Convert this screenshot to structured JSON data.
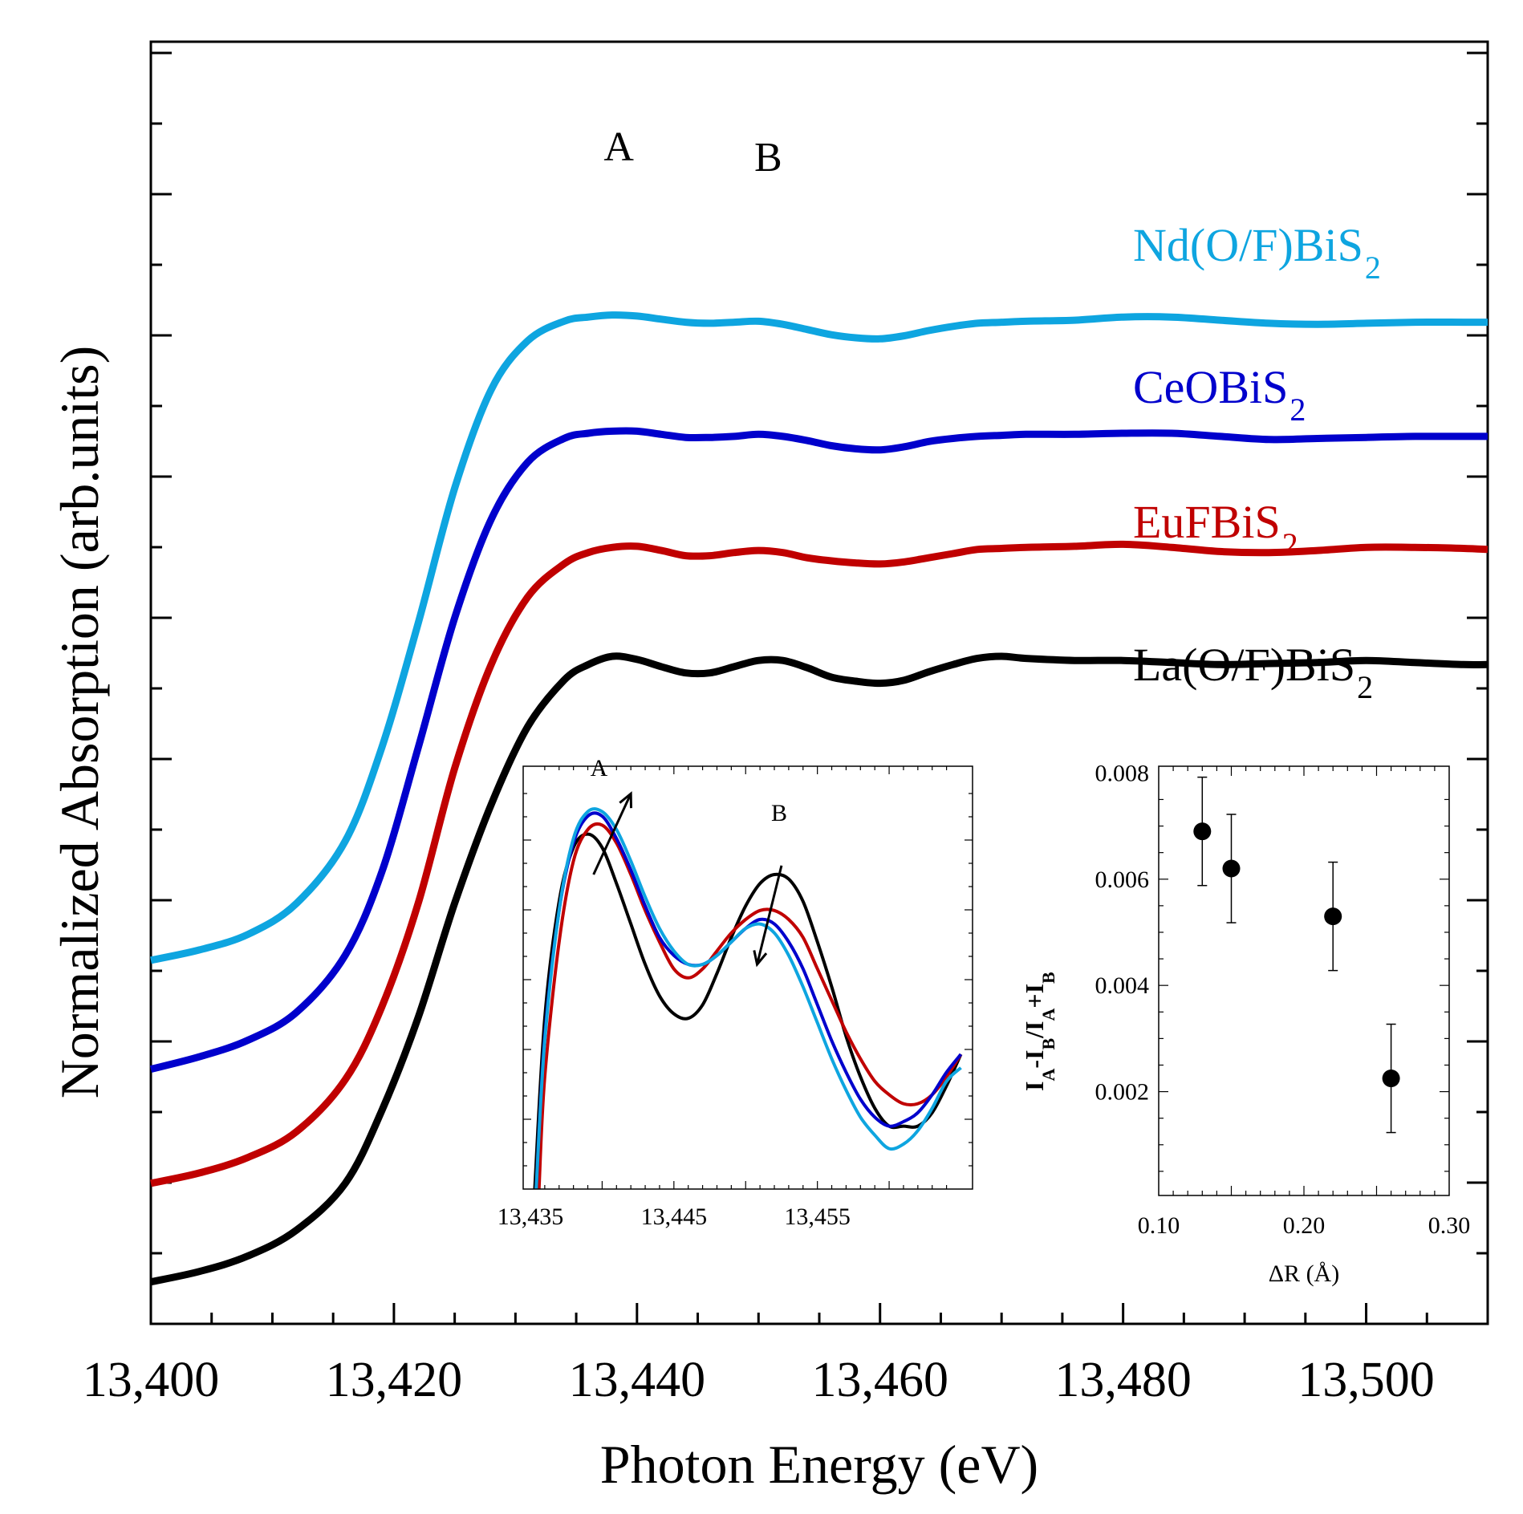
{
  "chart_data": [
    {
      "type": "line",
      "title": "",
      "xlabel": "Photon Energy (eV)",
      "ylabel": "Normalized Absorption (arb.units)",
      "xlim": [
        13400,
        13510
      ],
      "ylim": [
        0,
        9.5
      ],
      "x_ticks": [
        "13,400",
        "13,420",
        "13,440",
        "13,460",
        "13,480",
        "13,500"
      ],
      "x_tick_values": [
        13400,
        13420,
        13440,
        13460,
        13480,
        13500
      ],
      "peak_labels": [
        {
          "text": "A",
          "x": 13438.5
        },
        {
          "text": "B",
          "x": 13450.8
        }
      ],
      "series": [
        {
          "name": "La(O/F)BiS2",
          "label": "La(O/F)BiS",
          "subscript": "2",
          "color": "#000000",
          "x": [
            13400,
            13404,
            13408,
            13412,
            13416,
            13419,
            13422,
            13425,
            13428,
            13431,
            13434,
            13436,
            13438,
            13440,
            13442,
            13444,
            13446,
            13448,
            13450,
            13452,
            13454,
            13456,
            13458,
            13460,
            13462,
            13464,
            13466,
            13468,
            13470,
            13472,
            13476,
            13480,
            13484,
            13488,
            13492,
            13496,
            13500,
            13504,
            13508,
            13510
          ],
          "y": [
            0.25,
            0.35,
            0.5,
            0.75,
            1.2,
            1.9,
            2.8,
            3.9,
            4.85,
            5.6,
            6.05,
            6.2,
            6.28,
            6.25,
            6.18,
            6.12,
            6.12,
            6.18,
            6.24,
            6.24,
            6.17,
            6.08,
            6.04,
            6.02,
            6.05,
            6.13,
            6.2,
            6.26,
            6.28,
            6.26,
            6.24,
            6.24,
            6.22,
            6.2,
            6.21,
            6.22,
            6.24,
            6.22,
            6.2,
            6.2
          ]
        },
        {
          "name": "EuFBiS2",
          "label": "EuFBiS",
          "subscript": "2",
          "color": "#c00000",
          "x": [
            13400,
            13404,
            13408,
            13412,
            13416,
            13419,
            13422,
            13425,
            13428,
            13431,
            13434,
            13436,
            13438,
            13440,
            13442,
            13444,
            13446,
            13448,
            13450,
            13452,
            13454,
            13456,
            13458,
            13460,
            13462,
            13464,
            13466,
            13468,
            13470,
            13472,
            13476,
            13480,
            13484,
            13488,
            13492,
            13496,
            13500,
            13504,
            13508,
            13510
          ],
          "y": [
            1.2,
            1.3,
            1.45,
            1.7,
            2.2,
            2.9,
            3.9,
            5.2,
            6.2,
            6.85,
            7.17,
            7.28,
            7.33,
            7.34,
            7.3,
            7.25,
            7.25,
            7.28,
            7.3,
            7.28,
            7.23,
            7.2,
            7.18,
            7.17,
            7.19,
            7.23,
            7.27,
            7.31,
            7.32,
            7.33,
            7.34,
            7.36,
            7.33,
            7.29,
            7.28,
            7.3,
            7.33,
            7.33,
            7.32,
            7.31
          ]
        },
        {
          "name": "CeOBiS2",
          "label": "CeOBiS",
          "subscript": "2",
          "color": "#0000cc",
          "x": [
            13400,
            13404,
            13408,
            13412,
            13416,
            13419,
            13422,
            13425,
            13428,
            13431,
            13434,
            13436,
            13438,
            13440,
            13442,
            13444,
            13446,
            13448,
            13450,
            13452,
            13454,
            13456,
            13458,
            13460,
            13462,
            13464,
            13466,
            13468,
            13470,
            13472,
            13476,
            13480,
            13484,
            13488,
            13492,
            13496,
            13500,
            13504,
            13508,
            13510
          ],
          "y": [
            2.3,
            2.42,
            2.58,
            2.85,
            3.4,
            4.2,
            5.4,
            6.65,
            7.6,
            8.15,
            8.38,
            8.43,
            8.45,
            8.45,
            8.42,
            8.39,
            8.39,
            8.4,
            8.42,
            8.4,
            8.36,
            8.31,
            8.28,
            8.27,
            8.3,
            8.35,
            8.38,
            8.4,
            8.41,
            8.42,
            8.42,
            8.43,
            8.43,
            8.4,
            8.37,
            8.38,
            8.39,
            8.4,
            8.4,
            8.4
          ]
        },
        {
          "name": "Nd(O/F)BiS2",
          "label": "Nd(O/F)BiS",
          "subscript": "2",
          "color": "#0ea5e0",
          "x": [
            13400,
            13404,
            13408,
            13412,
            13416,
            13419,
            13422,
            13425,
            13428,
            13431,
            13434,
            13436,
            13438,
            13440,
            13442,
            13444,
            13446,
            13448,
            13450,
            13452,
            13454,
            13456,
            13458,
            13460,
            13462,
            13464,
            13466,
            13468,
            13470,
            13472,
            13476,
            13480,
            13484,
            13488,
            13492,
            13496,
            13500,
            13504,
            13508,
            13510
          ],
          "y": [
            3.35,
            3.45,
            3.6,
            3.9,
            4.5,
            5.4,
            6.6,
            7.9,
            8.85,
            9.32,
            9.51,
            9.55,
            9.57,
            9.56,
            9.53,
            9.5,
            9.49,
            9.5,
            9.51,
            9.48,
            9.43,
            9.38,
            9.35,
            9.34,
            9.37,
            9.42,
            9.46,
            9.49,
            9.5,
            9.51,
            9.52,
            9.55,
            9.55,
            9.52,
            9.49,
            9.48,
            9.49,
            9.5,
            9.5,
            9.5
          ]
        }
      ]
    },
    {
      "type": "line",
      "title": "",
      "xlabel": "",
      "ylabel": "",
      "xlim": [
        13435,
        13465
      ],
      "ylim": [
        0,
        1
      ],
      "x_ticks": [
        "13,435",
        "13,445",
        "13,455"
      ],
      "x_tick_values": [
        13435,
        13445,
        13455
      ],
      "peak_labels": [
        {
          "text": "A",
          "x": 13440
        },
        {
          "text": "B",
          "x": 13452
        }
      ],
      "arrows": [
        {
          "from_x": 13439.4,
          "from_y": 0.7,
          "to_x": 13442,
          "to_y": 0.88
        },
        {
          "from_x": 13452.5,
          "from_y": 0.72,
          "to_x": 13450.8,
          "to_y": 0.5
        }
      ],
      "series": [
        {
          "name": "La(O/F)BiS2",
          "color": "#000000",
          "x": [
            13435.3,
            13436,
            13437,
            13438,
            13439,
            13440,
            13441,
            13442,
            13443,
            13444,
            13445,
            13446,
            13447,
            13448,
            13449,
            13450,
            13451,
            13452,
            13453,
            13454,
            13455,
            13456,
            13457,
            13458,
            13459,
            13460,
            13461,
            13462,
            13463,
            13464,
            13465
          ],
          "y": [
            0.0,
            0.38,
            0.64,
            0.76,
            0.79,
            0.76,
            0.68,
            0.59,
            0.5,
            0.43,
            0.39,
            0.38,
            0.41,
            0.48,
            0.56,
            0.63,
            0.68,
            0.7,
            0.69,
            0.64,
            0.55,
            0.45,
            0.34,
            0.25,
            0.18,
            0.14,
            0.14,
            0.14,
            0.17,
            0.23,
            0.3
          ]
        },
        {
          "name": "EuFBiS2",
          "color": "#c00000",
          "x": [
            13435.6,
            13436,
            13437,
            13438,
            13439,
            13440,
            13441,
            13442,
            13443,
            13444,
            13445,
            13446,
            13447,
            13448,
            13449,
            13450,
            13451,
            13452,
            13453,
            13454,
            13455,
            13456,
            13457,
            13458,
            13459,
            13460,
            13461,
            13462,
            13463,
            13464,
            13465
          ],
          "y": [
            0.0,
            0.25,
            0.55,
            0.73,
            0.8,
            0.81,
            0.77,
            0.7,
            0.62,
            0.55,
            0.49,
            0.47,
            0.49,
            0.53,
            0.57,
            0.6,
            0.62,
            0.62,
            0.6,
            0.56,
            0.49,
            0.42,
            0.35,
            0.29,
            0.24,
            0.21,
            0.19,
            0.19,
            0.21,
            0.25,
            0.3
          ]
        },
        {
          "name": "CeOBiS2",
          "color": "#0000cc",
          "x": [
            13435.4,
            13436,
            13437,
            13438,
            13439,
            13440,
            13441,
            13442,
            13443,
            13444,
            13445,
            13446,
            13447,
            13448,
            13449,
            13450,
            13451,
            13452,
            13453,
            13454,
            13455,
            13456,
            13457,
            13458,
            13459,
            13460,
            13461,
            13462,
            13463,
            13464,
            13465
          ],
          "y": [
            0.0,
            0.34,
            0.62,
            0.77,
            0.83,
            0.83,
            0.78,
            0.71,
            0.63,
            0.56,
            0.52,
            0.5,
            0.5,
            0.52,
            0.55,
            0.58,
            0.6,
            0.59,
            0.55,
            0.49,
            0.41,
            0.33,
            0.26,
            0.2,
            0.16,
            0.14,
            0.15,
            0.17,
            0.21,
            0.26,
            0.3
          ]
        },
        {
          "name": "Nd(O/F)BiS2",
          "color": "#0ea5e0",
          "x": [
            13435.4,
            13436,
            13437,
            13438,
            13439,
            13440,
            13441,
            13442,
            13443,
            13444,
            13445,
            13446,
            13447,
            13448,
            13449,
            13450,
            13451,
            13452,
            13453,
            13454,
            13455,
            13456,
            13457,
            13458,
            13459,
            13460,
            13461,
            13462,
            13463,
            13464,
            13465
          ],
          "y": [
            0.0,
            0.33,
            0.62,
            0.78,
            0.84,
            0.84,
            0.8,
            0.73,
            0.65,
            0.58,
            0.53,
            0.5,
            0.5,
            0.52,
            0.55,
            0.58,
            0.59,
            0.57,
            0.52,
            0.45,
            0.37,
            0.29,
            0.22,
            0.16,
            0.12,
            0.09,
            0.1,
            0.13,
            0.18,
            0.24,
            0.27
          ]
        }
      ]
    },
    {
      "type": "scatter",
      "title": "",
      "xlabel": "ΔR (Å)",
      "ylabel_parts": [
        "I",
        "A",
        "-I",
        "B",
        "/I",
        "A",
        "+I",
        "B"
      ],
      "xlim": [
        0.1,
        0.3
      ],
      "ylim": [
        0,
        0.008
      ],
      "x_ticks": [
        "0.10",
        "0.20",
        "0.30"
      ],
      "x_tick_values": [
        0.1,
        0.2,
        0.3
      ],
      "y_ticks": [
        "0.002",
        "0.004",
        "0.006",
        "0.008"
      ],
      "y_tick_values": [
        0.002,
        0.004,
        0.006,
        0.008
      ],
      "points": [
        {
          "x": 0.13,
          "y": 0.0069,
          "err": 0.00102
        },
        {
          "x": 0.15,
          "y": 0.0062,
          "err": 0.00102
        },
        {
          "x": 0.22,
          "y": 0.0053,
          "err": 0.00102
        },
        {
          "x": 0.26,
          "y": 0.00225,
          "err": 0.00102
        }
      ]
    }
  ]
}
